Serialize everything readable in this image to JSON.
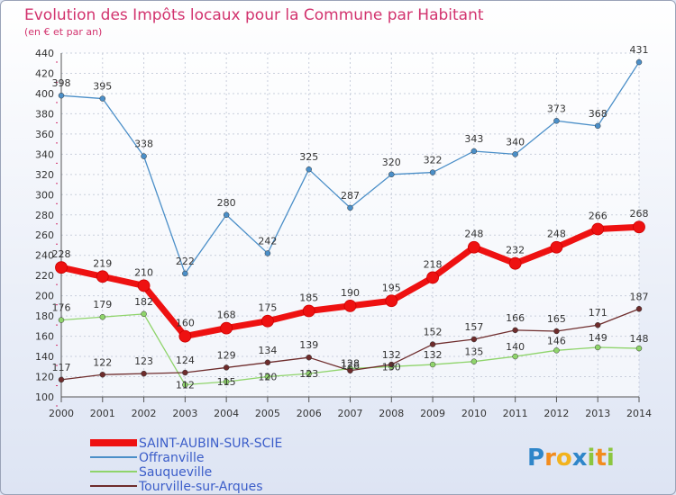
{
  "chart_data": {
    "type": "line",
    "title": "Evolution des Impôts locaux pour la Commune par Habitant",
    "subtitle": "(en € et par an)",
    "categories": [
      "2000",
      "2001",
      "2002",
      "2003",
      "2004",
      "2005",
      "2006",
      "2007",
      "2008",
      "2009",
      "2010",
      "2011",
      "2012",
      "2013",
      "2014"
    ],
    "ylim": [
      100,
      440
    ],
    "yticks": [
      100,
      120,
      140,
      160,
      180,
      200,
      220,
      240,
      260,
      280,
      300,
      320,
      340,
      360,
      380,
      400,
      420,
      440
    ],
    "series": [
      {
        "name": "Offranville",
        "color": "#4b8fc8",
        "values": [
          398,
          395,
          338,
          222,
          280,
          242,
          325,
          287,
          320,
          322,
          343,
          340,
          373,
          368,
          431
        ]
      },
      {
        "name": "Sauqueville",
        "color": "#8fd46b",
        "values": [
          176,
          179,
          182,
          112,
          115,
          120,
          123,
          128,
          130,
          132,
          135,
          140,
          146,
          149,
          148
        ]
      },
      {
        "name": "Tourville-sur-Arques",
        "color": "#6e2c2c",
        "values": [
          117,
          122,
          123,
          124,
          129,
          134,
          139,
          126,
          132,
          152,
          157,
          166,
          165,
          171,
          187
        ]
      },
      {
        "name": "SAINT-AUBIN-SUR-SCIE",
        "color": "#ee1111",
        "values": [
          228,
          219,
          210,
          160,
          168,
          175,
          185,
          190,
          195,
          218,
          248,
          232,
          248,
          266,
          268
        ]
      }
    ],
    "labels": {
      "Offranville": [
        "398",
        "395",
        "338",
        "222",
        "280",
        "242",
        "325",
        "287",
        "320",
        "322",
        "343",
        "340",
        "373",
        "368",
        "431"
      ],
      "Sauqueville": [
        "176",
        "179",
        "182",
        "112",
        "115",
        "120",
        "123",
        "128",
        "130",
        "132",
        "135",
        "140",
        "146",
        "149",
        "148"
      ],
      "Tourville-sur-Arques": [
        "117",
        "122",
        "123",
        "124",
        "129",
        "134",
        "139",
        "126",
        "132",
        "152",
        "157",
        "166",
        "165",
        "171",
        "187"
      ],
      "SAINT-AUBIN-SUR-SCIE": [
        "228",
        "219",
        "210",
        "160",
        "168",
        "175",
        "185",
        "190",
        "195",
        "218",
        "248",
        "232",
        "248",
        "266",
        "268"
      ]
    },
    "legend": [
      "SAINT-AUBIN-SUR-SCIE",
      "Offranville",
      "Sauqueville",
      "Tourville-sur-Arques"
    ],
    "grid": true,
    "legend_position": "bottom-left"
  },
  "logo": {
    "text": "Proxiti",
    "letters": [
      "P",
      "r",
      "o",
      "x",
      "i",
      "t",
      "i"
    ],
    "colors": [
      "#2f86c9",
      "#f28c1e",
      "#f2b31e",
      "#2f86c9",
      "#8cc63f",
      "#f28c1e",
      "#8cc63f"
    ]
  }
}
